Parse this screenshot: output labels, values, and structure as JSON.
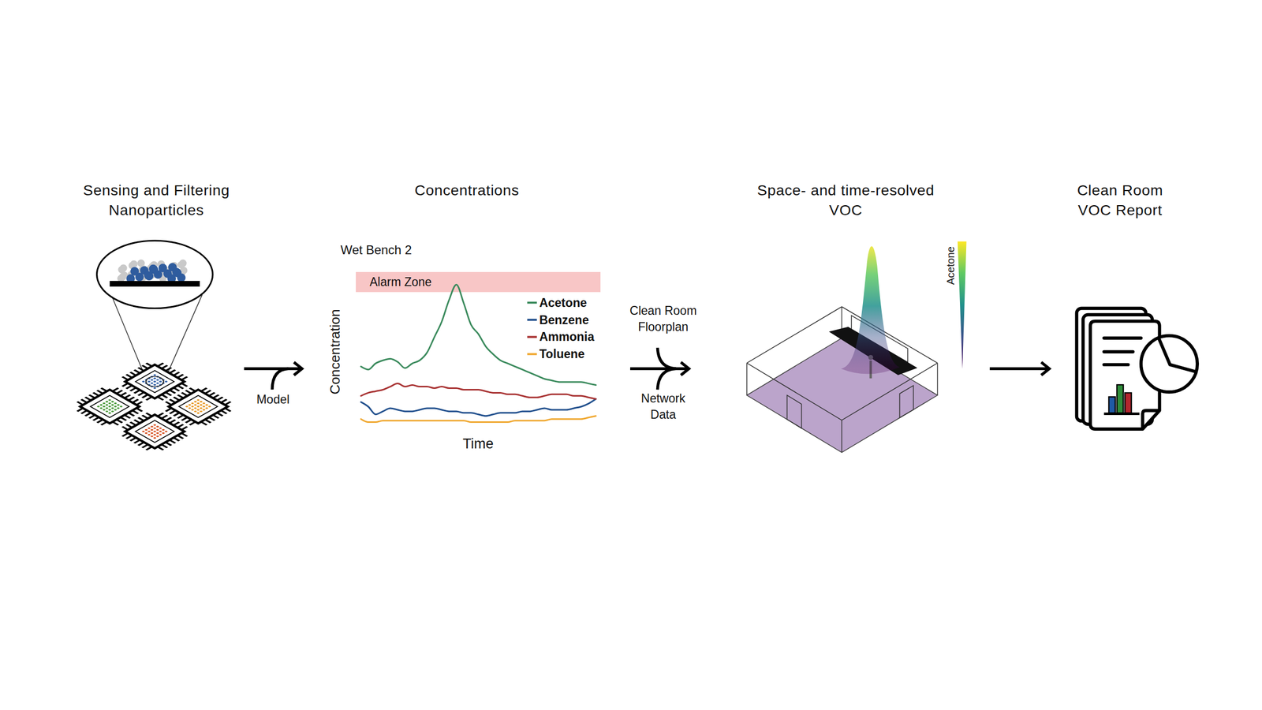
{
  "stages": [
    {
      "title": [
        "Sensing and Filtering",
        "Nanoparticles"
      ]
    },
    {
      "title": [
        "Concentrations"
      ]
    },
    {
      "title": [
        "Space- and time-resolved",
        "VOC"
      ]
    },
    {
      "title": [
        "Clean Room",
        "VOC Report"
      ]
    }
  ],
  "arrows": [
    {
      "labels": [
        [
          "Model"
        ]
      ]
    },
    {
      "labels": [
        [
          "Clean Room",
          "Floorplan"
        ],
        [
          "Network",
          "Data"
        ]
      ]
    }
  ],
  "chart_data": {
    "type": "line",
    "title": "Wet Bench 2",
    "x_label": "Time",
    "y_label": "Concentration",
    "tick_labels": false,
    "xlim": [
      0,
      100
    ],
    "ylim": [
      0,
      100
    ],
    "alarm_zone": {
      "label": "Alarm Zone",
      "from": 87,
      "to": 100
    },
    "x": [
      2,
      5,
      8,
      11,
      14,
      17,
      20,
      23,
      26,
      29,
      32,
      35,
      38,
      41,
      44,
      47,
      50,
      53,
      56,
      59,
      62,
      65,
      68,
      71,
      74,
      77,
      80,
      83,
      86,
      89,
      92,
      95,
      98
    ],
    "series": [
      {
        "name": "Acetone",
        "color": "#3a8a5c",
        "values": [
          39,
          37,
          41,
          43,
          44,
          42,
          38,
          41,
          43,
          48,
          58,
          68,
          82,
          92,
          80,
          66,
          60,
          52,
          47,
          43,
          41,
          39,
          37,
          35,
          33,
          31,
          30,
          29,
          29,
          29,
          29,
          28,
          27
        ]
      },
      {
        "name": "Benzene",
        "color": "#1f4e8c",
        "values": [
          16,
          13,
          8,
          10,
          12,
          11,
          10,
          10,
          11,
          12,
          12,
          11,
          10,
          10,
          9,
          9,
          8,
          7,
          8,
          9,
          9,
          9,
          10,
          10,
          11,
          12,
          11,
          11,
          11,
          12,
          13,
          15,
          18
        ]
      },
      {
        "name": "Ammonia",
        "color": "#a83232",
        "values": [
          20,
          22,
          23,
          24,
          26,
          28,
          26,
          27,
          26,
          26,
          25,
          26,
          25,
          25,
          24,
          24,
          24,
          23,
          22,
          22,
          21,
          21,
          20,
          19,
          19,
          20,
          21,
          21,
          21,
          20,
          20,
          19,
          18
        ]
      },
      {
        "name": "Toluene",
        "color": "#f0a830",
        "values": [
          5,
          3,
          3,
          4,
          4,
          4,
          4,
          4,
          4,
          4,
          4,
          4,
          4,
          4,
          4,
          3,
          3,
          3,
          3,
          3,
          3,
          4,
          4,
          4,
          4,
          4,
          5,
          5,
          5,
          5,
          5,
          6,
          7
        ]
      }
    ]
  },
  "voc_map": {
    "colorbar_label": "Acetone"
  }
}
